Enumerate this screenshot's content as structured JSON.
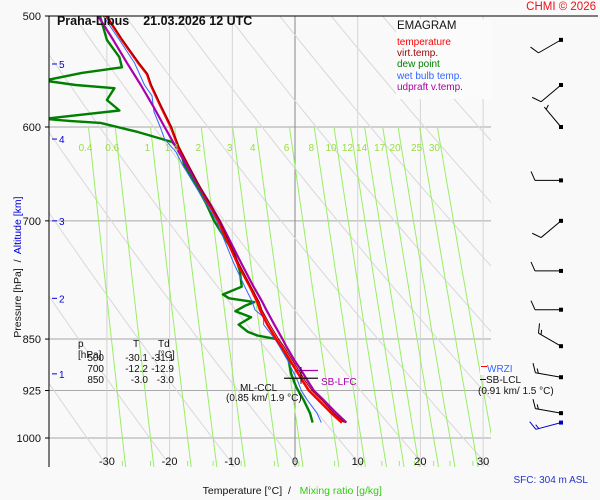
{
  "header": {
    "station": "Praha-Libus",
    "datetime": "21.03.2026 12 UTC",
    "copyright": "CHMI © 2026"
  },
  "footer": {
    "sfc": "SFC: 304 m ASL"
  },
  "colors": {
    "temperature": "#ff0000",
    "virt_temp": "#990000",
    "dew_point": "#008000",
    "wet_bulb": "#3366ff",
    "updraft": "#aa00aa",
    "mixing_ratio": "#99ee66",
    "altitude": "#0000dd"
  },
  "legend": {
    "title": "EMAGRAM",
    "items": [
      {
        "label": "temperature",
        "color": "#ff0000"
      },
      {
        "label": "virt.temp.",
        "color": "#990000"
      },
      {
        "label": "dew point",
        "color": "#008000"
      },
      {
        "label": "wet bulb temp.",
        "color": "#3366ff"
      },
      {
        "label": "udpraft v.temp.",
        "color": "#aa00aa"
      }
    ]
  },
  "table": {
    "headers": [
      "p [hPa]",
      "T",
      "Td [°C]"
    ],
    "rows": [
      [
        "500",
        "-30.1",
        "-31.1"
      ],
      [
        "700",
        "-12.2",
        "-12.9"
      ],
      [
        "850",
        "-3.0",
        "-3.0"
      ]
    ]
  },
  "annotations": {
    "ml_ccl": "ML-CCL",
    "ml_ccl_detail": "(0.85 km/ 1.9 °C)",
    "sb_lfc": "SB-LFC",
    "wrzi": "WRZI",
    "sb_lcl": "SB-LCL",
    "sb_lcl_detail": "(0.91 km/ 1.5 °C)"
  },
  "chart_data": {
    "type": "line",
    "title": "Praha-Libus 21.03.2026 12 UTC",
    "xlabel": "Temperature [°C]",
    "xlabel2": "Mixing ratio [g/kg]",
    "ylabel": "Pressure [hPa]",
    "ylabel2": "Altitude [km]",
    "xlim": [
      -40,
      35
    ],
    "ylim": [
      1000,
      500
    ],
    "x_ticks": [
      -30,
      -20,
      -10,
      0,
      10,
      20,
      30
    ],
    "pressure_ticks": [
      500,
      600,
      700,
      850,
      925,
      1000
    ],
    "altitude_ticks": [
      {
        "km": 1,
        "p": 900
      },
      {
        "km": 2,
        "p": 795
      },
      {
        "km": 3,
        "p": 700
      },
      {
        "km": 4,
        "p": 612
      },
      {
        "km": 5,
        "p": 541
      }
    ],
    "mixing_ratio_labels": [
      "0.4",
      "0.6",
      "1",
      "1.4",
      "2",
      "3",
      "4",
      "6",
      "8",
      "10",
      "12",
      "14",
      "17",
      "20",
      "25",
      "30"
    ],
    "series": [
      {
        "name": "temperature",
        "points": [
          [
            975,
            7.5
          ],
          [
            960,
            5.8
          ],
          [
            940,
            3.8
          ],
          [
            925,
            2.2
          ],
          [
            910,
            1.2
          ],
          [
            895,
            0.2
          ],
          [
            880,
            -0.8
          ],
          [
            860,
            -2.2
          ],
          [
            850,
            -3.0
          ],
          [
            830,
            -4.4
          ],
          [
            810,
            -5.6
          ],
          [
            800,
            -6.0
          ],
          [
            780,
            -7.2
          ],
          [
            750,
            -9.2
          ],
          [
            720,
            -11.0
          ],
          [
            700,
            -12.2
          ],
          [
            680,
            -13.8
          ],
          [
            660,
            -15.4
          ],
          [
            640,
            -17.0
          ],
          [
            620,
            -18.6
          ],
          [
            600,
            -19.8
          ],
          [
            580,
            -21.4
          ],
          [
            560,
            -23.0
          ],
          [
            550,
            -23.6
          ],
          [
            540,
            -25.0
          ],
          [
            520,
            -27.6
          ],
          [
            500,
            -30.1
          ]
        ]
      },
      {
        "name": "virt.temp.",
        "points": [
          [
            975,
            7.9
          ],
          [
            960,
            6.2
          ],
          [
            940,
            4.3
          ],
          [
            925,
            2.7
          ],
          [
            910,
            1.6
          ],
          [
            895,
            0.6
          ],
          [
            880,
            -0.4
          ],
          [
            860,
            -1.8
          ],
          [
            850,
            -2.6
          ],
          [
            830,
            -4.0
          ],
          [
            810,
            -5.3
          ],
          [
            800,
            -5.7
          ],
          [
            780,
            -7.0
          ],
          [
            750,
            -9.0
          ],
          [
            720,
            -10.8
          ],
          [
            700,
            -12.0
          ],
          [
            680,
            -13.6
          ],
          [
            660,
            -15.3
          ],
          [
            640,
            -16.9
          ],
          [
            620,
            -18.5
          ],
          [
            600,
            -19.7
          ],
          [
            580,
            -21.3
          ],
          [
            560,
            -22.9
          ],
          [
            550,
            -23.5
          ],
          [
            540,
            -24.9
          ],
          [
            520,
            -27.5
          ],
          [
            500,
            -30.0
          ]
        ]
      },
      {
        "name": "dew point",
        "points": [
          [
            975,
            2.8
          ],
          [
            960,
            2.4
          ],
          [
            940,
            1.4
          ],
          [
            920,
            0.2
          ],
          [
            900,
            -0.6
          ],
          [
            880,
            -1.0
          ],
          [
            860,
            -2.2
          ],
          [
            850,
            -3.0
          ],
          [
            845,
            -6.0
          ],
          [
            840,
            -7.5
          ],
          [
            830,
            -9.0
          ],
          [
            820,
            -7.0
          ],
          [
            812,
            -9.5
          ],
          [
            805,
            -8.0
          ],
          [
            800,
            -6.5
          ],
          [
            795,
            -10.5
          ],
          [
            790,
            -11.5
          ],
          [
            780,
            -8.5
          ],
          [
            760,
            -8.8
          ],
          [
            740,
            -9.6
          ],
          [
            720,
            -11.2
          ],
          [
            700,
            -12.9
          ],
          [
            680,
            -14.2
          ],
          [
            660,
            -15.8
          ],
          [
            640,
            -17.6
          ],
          [
            625,
            -18.2
          ],
          [
            615,
            -19.6
          ],
          [
            605,
            -25.0
          ],
          [
            596,
            -31.0
          ],
          [
            594,
            -36.0
          ],
          [
            592,
            -40.0
          ],
          [
            584,
            -28.0
          ],
          [
            574,
            -30.0
          ],
          [
            563,
            -28.8
          ],
          [
            560,
            -35.0
          ],
          [
            556,
            -40.0
          ],
          [
            549,
            -34.0
          ],
          [
            544,
            -27.6
          ],
          [
            535,
            -28.0
          ],
          [
            520,
            -30.0
          ],
          [
            500,
            -31.1
          ]
        ]
      },
      {
        "name": "wet bulb temp.",
        "points": [
          [
            975,
            4.2
          ],
          [
            960,
            3.5
          ],
          [
            940,
            2.0
          ],
          [
            925,
            1.0
          ],
          [
            910,
            0.4
          ],
          [
            895,
            -0.4
          ],
          [
            880,
            -1.2
          ],
          [
            860,
            -2.5
          ],
          [
            850,
            -3.2
          ],
          [
            830,
            -5.0
          ],
          [
            820,
            -5.0
          ],
          [
            810,
            -6.4
          ],
          [
            800,
            -6.8
          ],
          [
            780,
            -8.0
          ],
          [
            750,
            -9.8
          ],
          [
            720,
            -11.4
          ],
          [
            700,
            -12.5
          ],
          [
            680,
            -14.2
          ],
          [
            660,
            -16.0
          ],
          [
            640,
            -17.8
          ],
          [
            625,
            -19.0
          ],
          [
            612,
            -20.8
          ],
          [
            600,
            -21.5
          ],
          [
            585,
            -22.5
          ],
          [
            570,
            -22.8
          ],
          [
            560,
            -24.0
          ],
          [
            540,
            -25.6
          ],
          [
            520,
            -28.0
          ],
          [
            500,
            -30.6
          ]
        ]
      },
      {
        "name": "udpraft v.temp.",
        "points": [
          [
            975,
            8.2
          ],
          [
            960,
            6.6
          ],
          [
            940,
            4.6
          ],
          [
            925,
            3.0
          ],
          [
            910,
            2.0
          ],
          [
            895,
            1.0
          ],
          [
            880,
            -0.1
          ],
          [
            860,
            -1.4
          ],
          [
            850,
            -2.0
          ],
          [
            830,
            -3.3
          ],
          [
            810,
            -4.6
          ],
          [
            800,
            -5.2
          ],
          [
            780,
            -6.6
          ],
          [
            750,
            -8.6
          ],
          [
            720,
            -10.6
          ],
          [
            700,
            -12.0
          ],
          [
            680,
            -13.6
          ],
          [
            660,
            -15.4
          ],
          [
            640,
            -17.2
          ],
          [
            620,
            -19.0
          ],
          [
            600,
            -20.8
          ],
          [
            580,
            -22.6
          ],
          [
            560,
            -24.6
          ],
          [
            540,
            -26.8
          ],
          [
            520,
            -29.0
          ],
          [
            500,
            -31.4
          ]
        ]
      }
    ],
    "wind_barbs": [
      {
        "p": 520,
        "dir": 240,
        "speed_kt": 10
      },
      {
        "p": 560,
        "dir": 230,
        "speed_kt": 10
      },
      {
        "p": 600,
        "dir": 320,
        "speed_kt": 5
      },
      {
        "p": 655,
        "dir": 270,
        "speed_kt": 10
      },
      {
        "p": 700,
        "dir": 230,
        "speed_kt": 10
      },
      {
        "p": 760,
        "dir": 270,
        "speed_kt": 10
      },
      {
        "p": 810,
        "dir": 270,
        "speed_kt": 10
      },
      {
        "p": 860,
        "dir": 300,
        "speed_kt": 15
      },
      {
        "p": 905,
        "dir": 280,
        "speed_kt": 15
      },
      {
        "p": 960,
        "dir": 280,
        "speed_kt": 15
      },
      {
        "p": 975,
        "dir": 255,
        "speed_kt": 15,
        "color": "#0000cc"
      }
    ],
    "legend_position": "top-right"
  }
}
